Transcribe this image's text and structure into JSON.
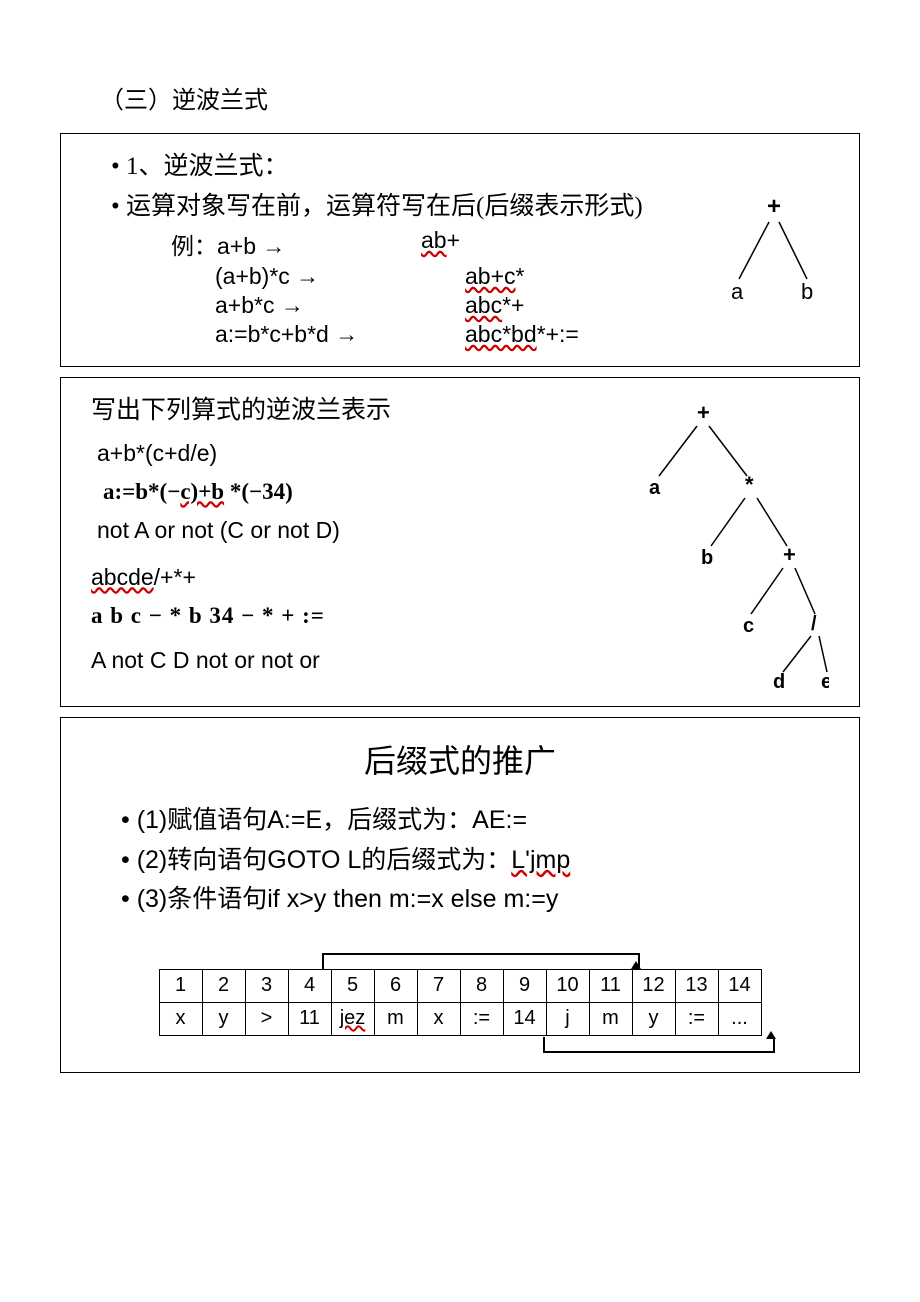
{
  "title": "（三）逆波兰式",
  "box1": {
    "b1": "•  1、逆波兰式：",
    "b2": "•  运算对象写在前，运算符写在后(后缀表示形式)",
    "examples_label": "例：",
    "ex": [
      {
        "l": "a+b  →",
        "r": "ab+",
        "r_wavy": "ab"
      },
      {
        "l": "(a+b)*c  →",
        "r": "ab+c*",
        "r_wavy": "ab+c"
      },
      {
        "l": "a+b*c  →",
        "r": "abc*+",
        "r_wavy": "abc"
      },
      {
        "l": "a:=b*c+b*d  →",
        "r": "abc*bd*+:=",
        "r_wavy": "abc*bd"
      }
    ],
    "tree": {
      "root": "+",
      "l": "a",
      "r": "b"
    }
  },
  "box2": {
    "prompt": "写出下列算式的逆波兰表示",
    "q1": "a+b*(c+d/e)",
    "q2_pre": "a:=b*(−",
    "q2_c": "c)+b",
    "q2_post": " *(−34)",
    "q3": "not A or not (C or not D)",
    "a1_wavy": "abcde",
    "a1_rest": "/+*+",
    "a2": "a b c − * b 34 − * + :=",
    "a3": "A not C D not or not or",
    "tree": {
      "n0": "+",
      "n1": "a",
      "n2": "*",
      "n3": "b",
      "n4": "+",
      "n5": "c",
      "n6": "/",
      "n7": "d",
      "n8": "e"
    }
  },
  "box3": {
    "title": "后缀式的推广",
    "b1": "•  (1)赋值语句A:=E，后缀式为：AE:=",
    "b2_pre": "•  (2)转向语句GOTO L的后缀式为：",
    "b2_link": "L'jmp",
    "b3": "•  (3)条件语句if x>y then m:=x else m:=y",
    "table": {
      "header": [
        "1",
        "2",
        "3",
        "4",
        "5",
        "6",
        "7",
        "8",
        "9",
        "10",
        "11",
        "12",
        "13",
        "14"
      ],
      "row": [
        "x",
        "y",
        ">",
        "11",
        "jez",
        "m",
        "x",
        ":=",
        "14",
        "j",
        "m",
        "y",
        ":=",
        "..."
      ],
      "wavy_cols": [
        4
      ]
    }
  }
}
